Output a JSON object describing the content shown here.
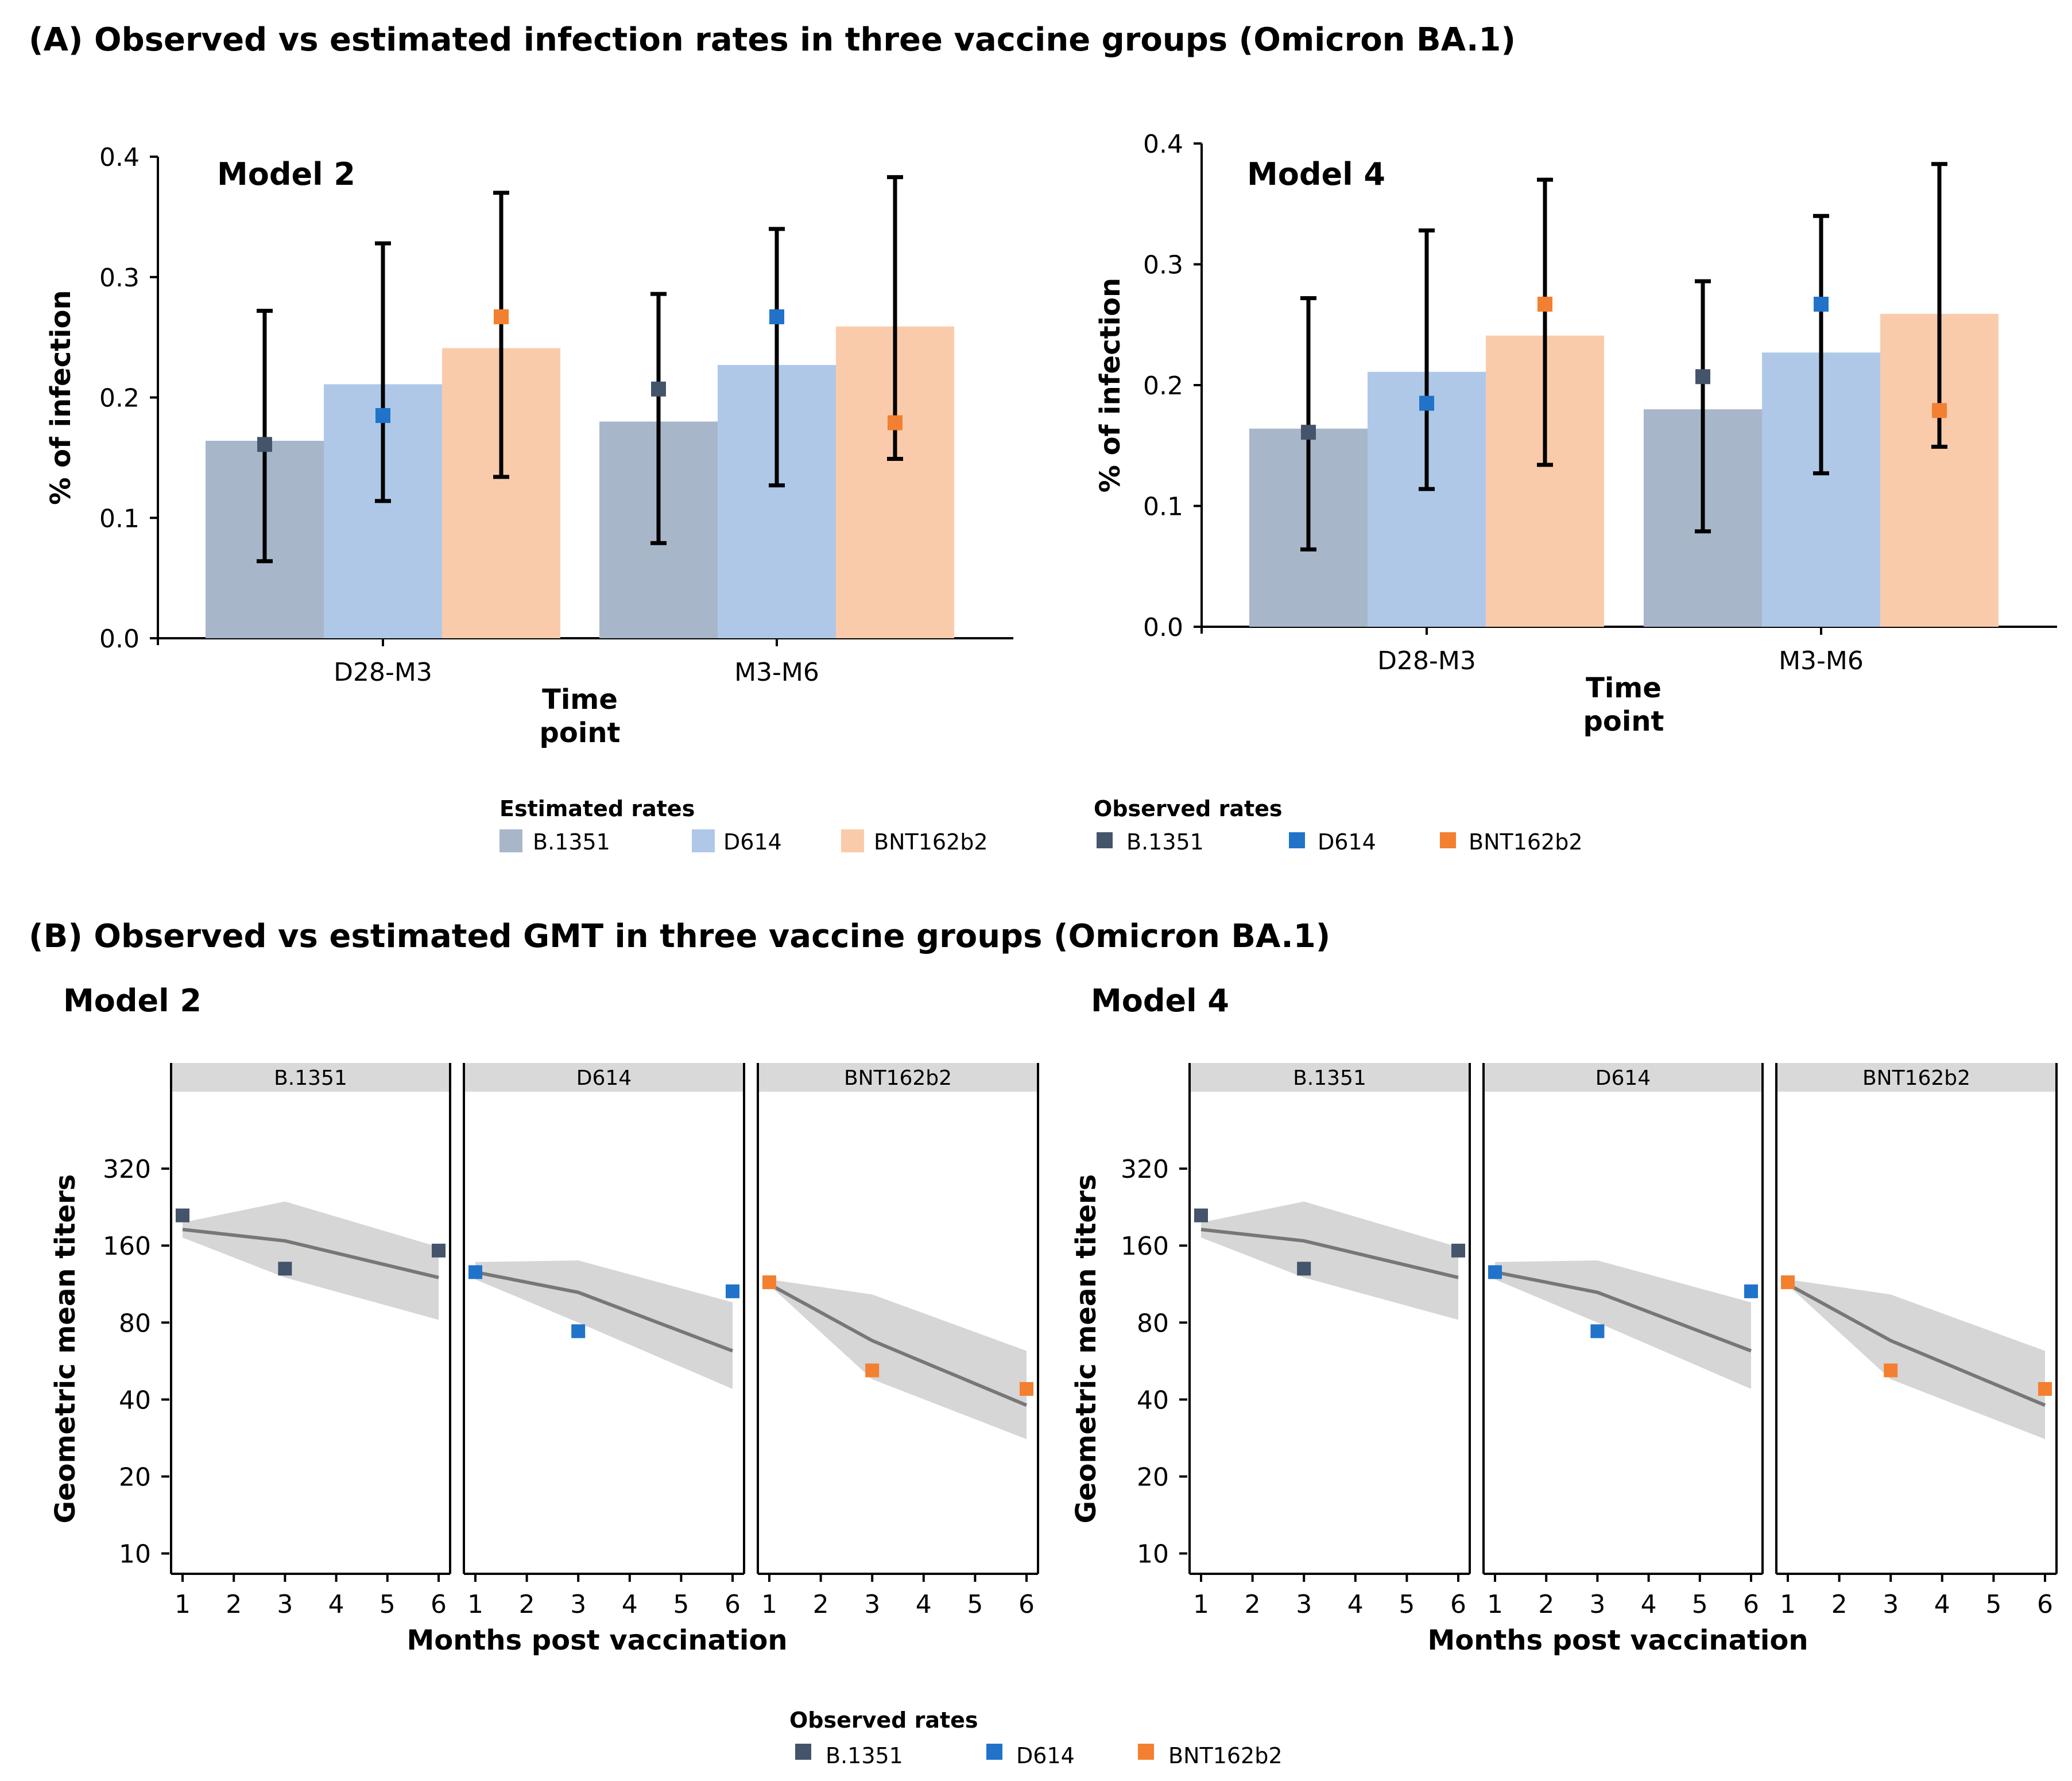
{
  "colors": {
    "est_b1351": "#A8B6CA",
    "est_d614": "#AFC8E8",
    "est_bnt": "#FACBAB",
    "obs_b1351": "#44546A",
    "obs_d614": "#2073C9",
    "obs_bnt": "#F28030",
    "band": "#D6D6D6",
    "line": "#777777",
    "strip": "#D9D9D9"
  },
  "panel_a": {
    "title": "(A) Observed vs estimated infection rates in three vaccine groups (Omicron BA.1)",
    "legend": {
      "estimated_title": "Estimated rates",
      "observed_title": "Observed rates",
      "items": [
        "B.1351",
        "D614",
        "BNT162b2"
      ]
    }
  },
  "panel_b": {
    "title": "(B) Observed vs estimated GMT in three vaccine groups (Omicron BA.1)",
    "legend": {
      "observed_title": "Observed rates",
      "items": [
        "B.1351",
        "D614",
        "BNT162b2"
      ]
    }
  },
  "chart_data": [
    {
      "type": "bar",
      "title": "Model 2",
      "xlabel": "Time point",
      "ylabel": "% of infection",
      "ylim": [
        0,
        0.4
      ],
      "yticks": [
        "0.0",
        "0.1",
        "0.2",
        "0.3",
        "0.4"
      ],
      "categories": [
        "D28-M3",
        "M3-M6"
      ],
      "series": [
        {
          "name": "B.1351",
          "estimated": [
            0.164,
            0.18
          ],
          "observed": [
            0.161,
            0.207
          ],
          "err_low": [
            0.064,
            0.079
          ],
          "err_high": [
            0.272,
            0.286
          ]
        },
        {
          "name": "D614",
          "estimated": [
            0.211,
            0.227
          ],
          "observed": [
            0.185,
            0.267
          ],
          "err_low": [
            0.114,
            0.127
          ],
          "err_high": [
            0.328,
            0.34
          ]
        },
        {
          "name": "BNT162b2",
          "estimated": [
            0.241,
            0.259
          ],
          "observed": [
            0.267,
            0.179
          ],
          "err_low": [
            0.134,
            0.149
          ],
          "err_high": [
            0.37,
            0.383
          ]
        }
      ]
    },
    {
      "type": "bar",
      "title": "Model 4",
      "xlabel": "Time point",
      "ylabel": "% of infection",
      "ylim": [
        0,
        0.4
      ],
      "yticks": [
        "0.0",
        "0.1",
        "0.2",
        "0.3",
        "0.4"
      ],
      "categories": [
        "D28-M3",
        "M3-M6"
      ],
      "series": [
        {
          "name": "B.1351",
          "estimated": [
            0.164,
            0.18
          ],
          "observed": [
            0.161,
            0.207
          ],
          "err_low": [
            0.064,
            0.079
          ],
          "err_high": [
            0.272,
            0.286
          ]
        },
        {
          "name": "D614",
          "estimated": [
            0.211,
            0.227
          ],
          "observed": [
            0.185,
            0.267
          ],
          "err_low": [
            0.114,
            0.127
          ],
          "err_high": [
            0.328,
            0.34
          ]
        },
        {
          "name": "BNT162b2",
          "estimated": [
            0.241,
            0.259
          ],
          "observed": [
            0.267,
            0.179
          ],
          "err_low": [
            0.134,
            0.149
          ],
          "err_high": [
            0.37,
            0.383
          ]
        }
      ]
    },
    {
      "type": "line",
      "title": "Model 2",
      "xlabel": "Months post vaccination",
      "ylabel": "Geometric mean titers",
      "yscale": "log2",
      "ylim": [
        8.5,
        640
      ],
      "yticks": [
        10,
        20,
        40,
        80,
        160,
        320
      ],
      "xticks": [
        1,
        2,
        3,
        4,
        5,
        6
      ],
      "xlim": [
        0.9,
        6.1
      ],
      "facets": [
        {
          "name": "B.1351",
          "line_x": [
            1,
            3,
            6
          ],
          "line_y": [
            185,
            167,
            120
          ],
          "band_upper": [
            197,
            238,
            158
          ],
          "band_lower": [
            172,
            120,
            82
          ],
          "obs_x": [
            1,
            3,
            6
          ],
          "obs_y": [
            210,
            130,
            153
          ]
        },
        {
          "name": "D614",
          "line_x": [
            1,
            3,
            6
          ],
          "line_y": [
            126,
            105,
            62
          ],
          "band_upper": [
            138,
            140,
            96
          ],
          "band_lower": [
            118,
            80,
            44
          ],
          "obs_x": [
            1,
            3,
            6
          ],
          "obs_y": [
            126,
            74,
            106
          ]
        },
        {
          "name": "BNT162b2",
          "line_x": [
            1,
            3,
            6
          ],
          "line_y": [
            113,
            68,
            38
          ],
          "band_upper": [
            118,
            103,
            62
          ],
          "band_lower": [
            112,
            48,
            28
          ],
          "obs_x": [
            1,
            3,
            6
          ],
          "obs_y": [
            115,
            52,
            44
          ]
        }
      ]
    },
    {
      "type": "line",
      "title": "Model 4",
      "xlabel": "Months post vaccination",
      "ylabel": "Geometric mean titers",
      "yscale": "log2",
      "ylim": [
        8.5,
        640
      ],
      "yticks": [
        10,
        20,
        40,
        80,
        160,
        320
      ],
      "xticks": [
        1,
        2,
        3,
        4,
        5,
        6
      ],
      "xlim": [
        0.9,
        6.1
      ],
      "facets": [
        {
          "name": "B.1351",
          "line_x": [
            1,
            3,
            6
          ],
          "line_y": [
            185,
            167,
            120
          ],
          "band_upper": [
            197,
            238,
            158
          ],
          "band_lower": [
            172,
            120,
            82
          ],
          "obs_x": [
            1,
            3,
            6
          ],
          "obs_y": [
            210,
            130,
            153
          ]
        },
        {
          "name": "D614",
          "line_x": [
            1,
            3,
            6
          ],
          "line_y": [
            126,
            105,
            62
          ],
          "band_upper": [
            138,
            140,
            96
          ],
          "band_lower": [
            118,
            80,
            44
          ],
          "obs_x": [
            1,
            3,
            6
          ],
          "obs_y": [
            126,
            74,
            106
          ]
        },
        {
          "name": "BNT162b2",
          "line_x": [
            1,
            3,
            6
          ],
          "line_y": [
            113,
            68,
            38
          ],
          "band_upper": [
            118,
            103,
            62
          ],
          "band_lower": [
            112,
            48,
            28
          ],
          "obs_x": [
            1,
            3,
            6
          ],
          "obs_y": [
            115,
            52,
            44
          ]
        }
      ]
    }
  ]
}
